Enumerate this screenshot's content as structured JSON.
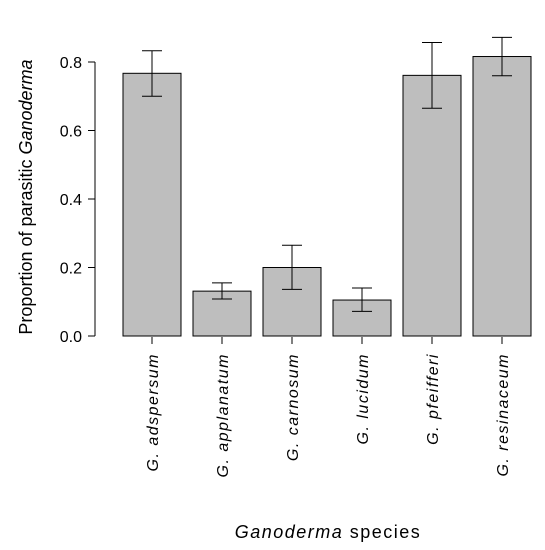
{
  "chart_data": {
    "type": "bar",
    "categories": [
      "G. adspersum",
      "G. applanatum",
      "G. carnosum",
      "G. lucidum",
      "G. pfeifferi",
      "G. resinaceum"
    ],
    "values": [
      0.767,
      0.131,
      0.2,
      0.105,
      0.761,
      0.816
    ],
    "error_low": [
      0.7,
      0.108,
      0.136,
      0.072,
      0.665,
      0.76
    ],
    "error_high": [
      0.833,
      0.155,
      0.265,
      0.14,
      0.857,
      0.872
    ],
    "ylabel_prefix": "Proportion of parasitic ",
    "ylabel_italic": "Ganoderma",
    "xlabel_italic": "Ganoderma",
    "xlabel_suffix": " species",
    "ylim": [
      0,
      0.82
    ],
    "yticks": [
      "0.0",
      "0.2",
      "0.4",
      "0.6",
      "0.8"
    ],
    "grid": false,
    "bar_color": "#bebebe"
  }
}
